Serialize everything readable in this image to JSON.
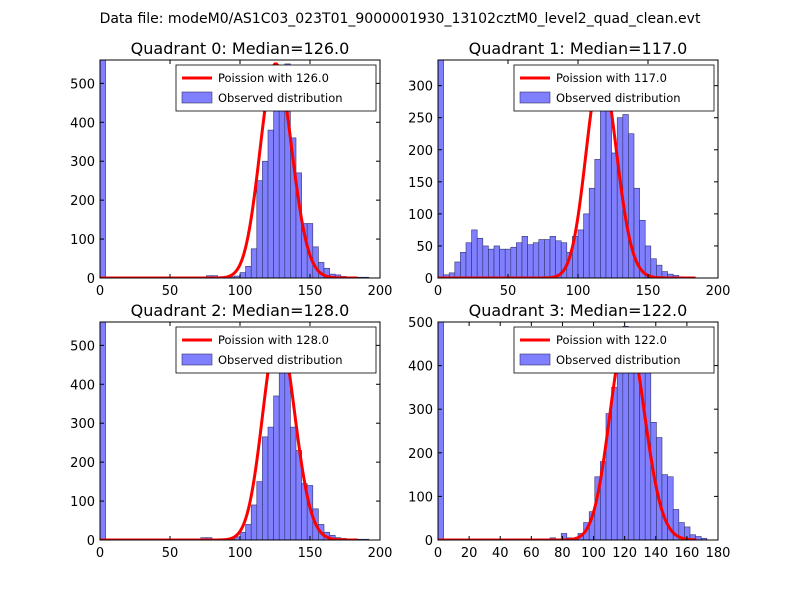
{
  "suptitle": "Data file: modeM0/AS1C03_023T01_9000001930_13102cztM0_level2_quad_clean.evt",
  "colors": {
    "bar": "#7f7fff",
    "bar_edge": "#33336b",
    "fit": "#ff0000"
  },
  "chart_data": [
    {
      "type": "bar",
      "title": "Quadrant 0: Median=126.0",
      "legend": {
        "line": "Poission with 126.0",
        "bars": "Observed distribution",
        "placement": "top-right"
      },
      "xlim": [
        0,
        200
      ],
      "ylim": [
        0,
        560
      ],
      "xticks": [
        0,
        50,
        100,
        150,
        200
      ],
      "yticks": [
        0,
        100,
        200,
        300,
        400,
        500
      ],
      "bin_width": 4,
      "bins": [
        [
          0,
          560
        ],
        [
          76,
          6
        ],
        [
          80,
          6
        ],
        [
          92,
          3
        ],
        [
          96,
          5
        ],
        [
          100,
          14
        ],
        [
          104,
          30
        ],
        [
          108,
          75
        ],
        [
          112,
          250
        ],
        [
          116,
          300
        ],
        [
          120,
          380
        ],
        [
          124,
          465
        ],
        [
          128,
          520
        ],
        [
          132,
          550
        ],
        [
          136,
          360
        ],
        [
          140,
          270
        ],
        [
          144,
          140
        ],
        [
          148,
          140
        ],
        [
          152,
          80
        ],
        [
          156,
          40
        ],
        [
          160,
          25
        ],
        [
          164,
          10
        ],
        [
          168,
          8
        ],
        [
          172,
          4
        ],
        [
          176,
          3
        ],
        [
          184,
          2
        ],
        [
          188,
          2
        ]
      ],
      "fit_mean": 126.0,
      "fit_scale": 550
    },
    {
      "type": "bar",
      "title": "Quadrant 1: Median=117.0",
      "legend": {
        "line": "Poission with 117.0",
        "bars": "Observed distribution",
        "placement": "top-right"
      },
      "xlim": [
        0,
        200
      ],
      "ylim": [
        0,
        340
      ],
      "xticks": [
        0,
        50,
        100,
        150,
        200
      ],
      "yticks": [
        0,
        50,
        100,
        150,
        200,
        250,
        300
      ],
      "bin_width": 4,
      "bins": [
        [
          0,
          340
        ],
        [
          4,
          5
        ],
        [
          8,
          8
        ],
        [
          12,
          25
        ],
        [
          16,
          40
        ],
        [
          20,
          55
        ],
        [
          24,
          75
        ],
        [
          28,
          62
        ],
        [
          32,
          50
        ],
        [
          36,
          45
        ],
        [
          40,
          50
        ],
        [
          44,
          45
        ],
        [
          48,
          45
        ],
        [
          52,
          48
        ],
        [
          56,
          55
        ],
        [
          60,
          65
        ],
        [
          64,
          52
        ],
        [
          68,
          55
        ],
        [
          72,
          60
        ],
        [
          76,
          60
        ],
        [
          80,
          65
        ],
        [
          84,
          58
        ],
        [
          88,
          55
        ],
        [
          92,
          40
        ],
        [
          96,
          65
        ],
        [
          100,
          75
        ],
        [
          104,
          100
        ],
        [
          108,
          140
        ],
        [
          112,
          185
        ],
        [
          116,
          265
        ],
        [
          120,
          330
        ],
        [
          124,
          195
        ],
        [
          128,
          250
        ],
        [
          132,
          255
        ],
        [
          136,
          225
        ],
        [
          140,
          140
        ],
        [
          144,
          90
        ],
        [
          148,
          50
        ],
        [
          152,
          30
        ],
        [
          156,
          20
        ],
        [
          160,
          10
        ],
        [
          164,
          6
        ],
        [
          168,
          4
        ],
        [
          172,
          2
        ]
      ],
      "fit_mean": 117.0,
      "fit_scale": 325
    },
    {
      "type": "bar",
      "title": "Quadrant 2: Median=128.0",
      "legend": {
        "line": "Poission with 128.0",
        "bars": "Observed distribution",
        "placement": "top-right"
      },
      "xlim": [
        0,
        200
      ],
      "ylim": [
        0,
        560
      ],
      "xticks": [
        0,
        50,
        100,
        150,
        200
      ],
      "yticks": [
        0,
        100,
        200,
        300,
        400,
        500
      ],
      "bin_width": 4,
      "bins": [
        [
          0,
          560
        ],
        [
          72,
          6
        ],
        [
          76,
          6
        ],
        [
          92,
          3
        ],
        [
          96,
          8
        ],
        [
          100,
          20
        ],
        [
          104,
          40
        ],
        [
          108,
          90
        ],
        [
          112,
          150
        ],
        [
          116,
          265
        ],
        [
          120,
          290
        ],
        [
          124,
          370
        ],
        [
          128,
          530
        ],
        [
          132,
          540
        ],
        [
          136,
          290
        ],
        [
          140,
          230
        ],
        [
          144,
          145
        ],
        [
          148,
          140
        ],
        [
          152,
          80
        ],
        [
          156,
          40
        ],
        [
          160,
          20
        ],
        [
          164,
          12
        ],
        [
          168,
          6
        ],
        [
          172,
          4
        ],
        [
          176,
          3
        ],
        [
          184,
          2
        ],
        [
          188,
          2
        ]
      ],
      "fit_mean": 128.0,
      "fit_scale": 540
    },
    {
      "type": "bar",
      "title": "Quadrant 3: Median=122.0",
      "legend": {
        "line": "Poission with 122.0",
        "bars": "Observed distribution",
        "placement": "top-right"
      },
      "xlim": [
        0,
        180
      ],
      "ylim": [
        0,
        500
      ],
      "xticks": [
        0,
        20,
        40,
        60,
        80,
        100,
        120,
        140,
        160,
        180
      ],
      "yticks": [
        0,
        100,
        200,
        300,
        400,
        500
      ],
      "bin_width": 3.6,
      "bins": [
        [
          0,
          500
        ],
        [
          72,
          5
        ],
        [
          79.2,
          15
        ],
        [
          82.8,
          5
        ],
        [
          90,
          15
        ],
        [
          93.6,
          40
        ],
        [
          97.2,
          65
        ],
        [
          100.8,
          145
        ],
        [
          104.4,
          180
        ],
        [
          108,
          290
        ],
        [
          111.6,
          350
        ],
        [
          115.2,
          440
        ],
        [
          118.8,
          490
        ],
        [
          122.4,
          450
        ],
        [
          126,
          460
        ],
        [
          129.6,
          440
        ],
        [
          133.2,
          400
        ],
        [
          136.8,
          270
        ],
        [
          140.4,
          235
        ],
        [
          144,
          150
        ],
        [
          147.6,
          145
        ],
        [
          151.2,
          70
        ],
        [
          154.8,
          40
        ],
        [
          158.4,
          30
        ],
        [
          162,
          12
        ],
        [
          165.6,
          8
        ],
        [
          169.2,
          4
        ]
      ],
      "fit_mean": 122.0,
      "fit_scale": 480
    }
  ]
}
